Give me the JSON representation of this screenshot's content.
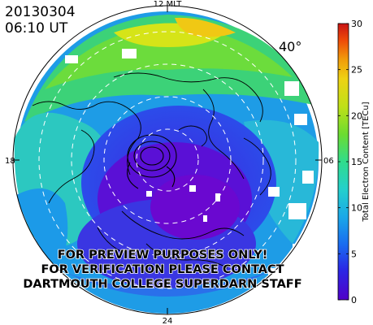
{
  "header": {
    "date": "20130304",
    "time": "06:10 UT"
  },
  "map": {
    "latitude_label": "40°",
    "mlt_labels": {
      "top": "12 MLT",
      "left": "18",
      "right": "06",
      "bottom": "24"
    }
  },
  "watermark": {
    "lines": [
      "FOR PREVIEW PURPOSES ONLY!",
      "FOR VERIFICATION PLEASE CONTACT",
      "DARTMOUTH COLLEGE SUPERDARN STAFF"
    ]
  },
  "colorbar": {
    "title": "Total Electron Content [TECu]",
    "ticks": [
      "0",
      "5",
      "10",
      "15",
      "20",
      "25",
      "30"
    ],
    "min": 0,
    "max": 30,
    "colors": [
      "#5000c8",
      "#1e3cf0",
      "#1890f0",
      "#24d2c8",
      "#3cdc78",
      "#8cdc28",
      "#e6e614",
      "#f0b40a",
      "#ee3c08",
      "#c81414"
    ]
  }
}
